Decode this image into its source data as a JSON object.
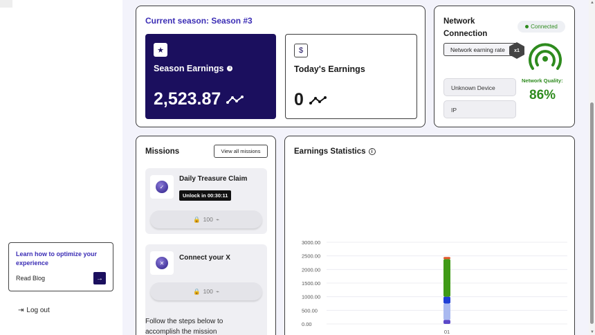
{
  "sidebar": {
    "promo": {
      "title": "Learn how to optimize your experience",
      "link": "Read Blog"
    },
    "logout": "Log out"
  },
  "season": {
    "title": "Current season: Season #3",
    "season_earnings": {
      "label": "Season Earnings",
      "value": "2,523.87"
    },
    "today_earnings": {
      "label": "Today's Earnings",
      "value": "0"
    }
  },
  "network": {
    "title": "Network Connection",
    "status": "Connected",
    "rate_button": "Network earning rate",
    "multiplier": "x1",
    "device": "Unknown Device",
    "ip": "IP",
    "quality_label": "Network Quality:",
    "quality_value": "86%"
  },
  "missions": {
    "title": "Missions",
    "view_all": "View all missions",
    "items": [
      {
        "title": "Daily Treasure Claim",
        "unlock": "Unlock in 00:30:11",
        "reward": "100"
      },
      {
        "title": "Connect your X",
        "reward": "100"
      }
    ],
    "follow_text": "Follow the steps below to accomplish the mission"
  },
  "stats": {
    "title": "Earnings Statistics"
  },
  "chart_data": {
    "type": "bar",
    "stacked": true,
    "categories": [
      "01"
    ],
    "y_ticks": [
      "3000.00",
      "2500.00",
      "2000.00",
      "1500.00",
      "1000.00",
      "500.00",
      "0.00"
    ],
    "ylim": [
      0,
      3000
    ],
    "grid": true,
    "series": [
      {
        "color": "#5b49c9",
        "values": [
          150
        ]
      },
      {
        "color": "#a9b9f0",
        "values": [
          600
        ]
      },
      {
        "color": "#1f3fd6",
        "values": [
          250
        ]
      },
      {
        "color": "#3f9a16",
        "values": [
          1380
        ]
      },
      {
        "color": "#e2572b",
        "values": [
          80
        ]
      }
    ]
  },
  "colors": {
    "accent": "#3b2db5",
    "dark_card": "#1b0f5e",
    "success": "#2e8b1e"
  }
}
